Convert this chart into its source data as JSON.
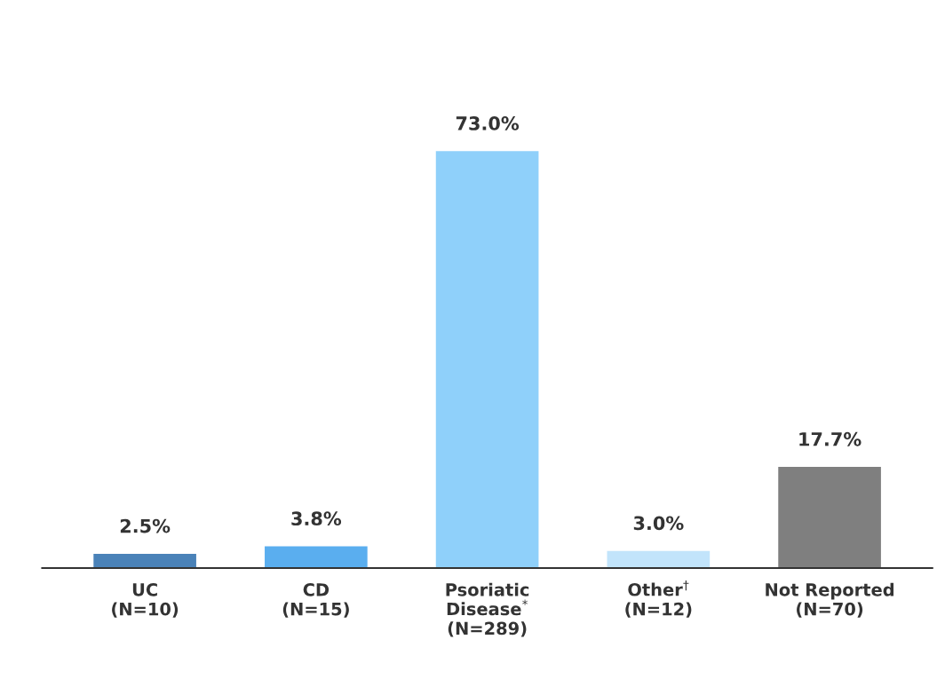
{
  "chart_data": {
    "type": "bar",
    "categories": [
      "UC\n(N=10)",
      "CD\n(N=15)",
      "Psoriatic\nDisease$^{*}$\n(N=289)",
      "Other$^{†}$\n(N=12)",
      "Not Reported\n(N=70)"
    ],
    "values": [
      2.5,
      3.8,
      73.0,
      3.0,
      17.7
    ],
    "value_labels": [
      "2.5%",
      "3.8%",
      "73.0%",
      "3.0%",
      "17.7%"
    ],
    "colors": [
      "#4a82b8",
      "#5aaeef",
      "#8fd0fa",
      "#c2e4fb",
      "#7f7f7f"
    ],
    "grid": false,
    "legend": false
  }
}
